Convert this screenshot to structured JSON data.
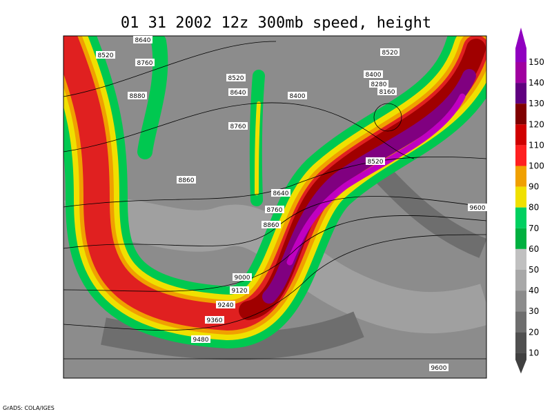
{
  "header": {
    "title": "01 31 2002 12z 300mb speed, height"
  },
  "contour_labels": [
    "8640",
    "8520",
    "8760",
    "8880",
    "8520",
    "8640",
    "8400",
    "8760",
    "8860",
    "8640",
    "8760",
    "8860",
    "9000",
    "9120",
    "9240",
    "9360",
    "9480",
    "8520",
    "8400",
    "8280",
    "8160",
    "8520",
    "9600",
    "9600"
  ],
  "colorbar": {
    "labels": [
      "150",
      "140",
      "130",
      "120",
      "110",
      "100",
      "90",
      "80",
      "70",
      "60",
      "50",
      "40",
      "30",
      "20",
      "10"
    ]
  },
  "footer": {
    "credit": "GrADS: COLA/IGES"
  }
}
